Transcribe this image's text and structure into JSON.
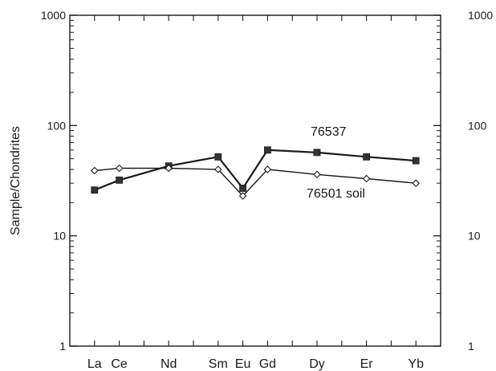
{
  "chart_data": {
    "type": "line",
    "title": "",
    "xlabel": "",
    "ylabel": "Sample/Chondrites",
    "yscale": "log",
    "ylim": [
      1,
      1000
    ],
    "ytick_labels": [
      "1",
      "10",
      "100",
      "1000"
    ],
    "ytick_values": [
      1,
      10,
      100,
      1000
    ],
    "xtick_labels": [
      "La",
      "Ce",
      "Nd",
      "Sm",
      "Eu",
      "Gd",
      "Dy",
      "Er",
      "Yb"
    ],
    "xtick_positions": [
      57,
      58,
      60,
      62,
      63,
      64,
      66,
      68,
      70
    ],
    "xlim": [
      56,
      71
    ],
    "grid": false,
    "series": [
      {
        "name": "76537",
        "marker": "filled-square",
        "x": [
          57,
          58,
          60,
          62,
          63,
          64,
          66,
          68,
          70
        ],
        "values": [
          26,
          32,
          43,
          52,
          27,
          60,
          57,
          52,
          48
        ]
      },
      {
        "name": "76501 soil",
        "marker": "open-diamond",
        "x": [
          57,
          58,
          60,
          62,
          63,
          64,
          66,
          68,
          70
        ],
        "values": [
          39,
          41,
          41,
          40,
          23,
          40,
          36,
          33,
          30
        ]
      }
    ],
    "colors": {
      "axis": "#1a1a1a",
      "line": "#1a1a1a",
      "square": "#333333"
    }
  }
}
